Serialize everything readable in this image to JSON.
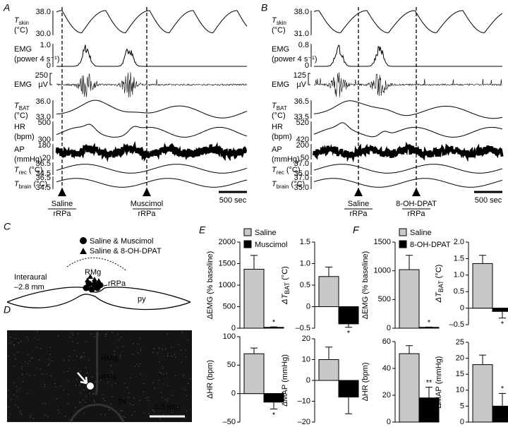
{
  "panel_a": {
    "label": "A",
    "rows": [
      {
        "name": "T",
        "sub": "skin",
        "unit": "(°C)",
        "scale": [
          "38.0",
          "30.0"
        ]
      },
      {
        "name": "EMG",
        "unit": "(power 4 s⁻¹)",
        "scale": [
          "1.0",
          "0"
        ]
      },
      {
        "name": "EMG",
        "scale": [
          "250",
          "µV"
        ]
      },
      {
        "name": "T",
        "sub": "BAT",
        "unit": "(°C)",
        "scale": [
          "36.0",
          "33.0"
        ]
      },
      {
        "name": "HR",
        "unit": "(bpm)",
        "scale": [
          "500",
          "300"
        ]
      },
      {
        "name": "AP",
        "unit": "(mmHg)",
        "scale": [
          "180",
          "20"
        ]
      },
      {
        "name": "T",
        "sub": "rec",
        "unit": "(°C)",
        "scale": [
          "36.5",
          "34.5"
        ]
      },
      {
        "name": "T",
        "sub": "brain",
        "unit": "(°C)",
        "scale": [
          "36.5",
          "34.5"
        ]
      }
    ],
    "events": [
      {
        "drug": "Saline",
        "site": "rRPa"
      },
      {
        "drug": "Muscimol",
        "site": "rRPa"
      }
    ],
    "scale_bar": "500 sec"
  },
  "panel_b": {
    "label": "B",
    "rows": [
      {
        "name": "T",
        "sub": "skin",
        "unit": "(°C)",
        "scale": [
          "38.0",
          "31.0"
        ]
      },
      {
        "name": "EMG",
        "unit": "(power 4 s⁻¹)",
        "scale": [
          "0.8",
          "0"
        ]
      },
      {
        "name": "EMG",
        "scale": [
          "125",
          "µV"
        ]
      },
      {
        "name": "T",
        "sub": "BAT",
        "unit": "(°C)",
        "scale": [
          "36.5",
          "33.5"
        ]
      },
      {
        "name": "HR",
        "unit": "(bpm)",
        "scale": [
          "520",
          "420"
        ]
      },
      {
        "name": "AP",
        "unit": "(mmHg)",
        "scale": [
          "200",
          "50"
        ]
      },
      {
        "name": "T",
        "sub": "rec",
        "unit": "(°C)",
        "scale": [
          "37.0",
          "35.0"
        ]
      },
      {
        "name": "T",
        "sub": "brain",
        "unit": "(°C)",
        "scale": [
          "37.0",
          "35.0"
        ]
      }
    ],
    "events": [
      {
        "drug": "Saline",
        "site": "rRPa"
      },
      {
        "drug": "8-OH-DPAT",
        "site": "rRPa"
      }
    ],
    "scale_bar": "500 sec"
  },
  "panel_c": {
    "label": "C",
    "legend": [
      "Saline & Muscimol",
      "Saline & 8-OH-DPAT"
    ],
    "interaural": [
      "Interaural",
      "–2.8 mm"
    ],
    "regions": [
      "RMg",
      "rRPa",
      "py"
    ]
  },
  "panel_d": {
    "label": "D",
    "regions": [
      "RMg",
      "rRPa",
      "py"
    ],
    "scale_bar": "0.5 mm"
  },
  "panel_e": {
    "label": "E",
    "series": [
      {
        "name": "Saline",
        "color": "#c8c8c8"
      },
      {
        "name": "Muscimol",
        "color": "#000000"
      }
    ],
    "charts": [
      {
        "ylabel": {
          "prefix": "ΔEMG",
          "unit": "(% baseline)"
        },
        "ylim": [
          0,
          2000
        ],
        "yticks": [
          0,
          500,
          1000,
          1500,
          2000
        ],
        "values": [
          1370,
          20
        ],
        "errors": [
          320,
          10
        ],
        "annotation": "*"
      },
      {
        "ylabel": {
          "prefix": "ΔT",
          "sub": "BAT",
          "unit": "(°C)"
        },
        "ylim": [
          -0.5,
          1.5
        ],
        "yticks": [
          {
            "value": -0.5,
            "label": "–0.5"
          },
          0,
          0.5,
          {
            "value": 1,
            "label": "1.0"
          },
          1.5
        ],
        "values": [
          0.7,
          -0.4
        ],
        "errors": [
          0.22,
          0.08
        ],
        "annotation": "*"
      },
      {
        "ylabel": {
          "prefix": "ΔHR",
          "unit": "(bpm)"
        },
        "ylim": [
          -50,
          100
        ],
        "yticks": [
          {
            "value": -50,
            "label": "–50"
          },
          0,
          50,
          100
        ],
        "values": [
          70,
          -15
        ],
        "errors": [
          10,
          12
        ],
        "annotation": "*"
      },
      {
        "ylabel": {
          "prefix": "ΔMAP",
          "unit": "(mmHg)"
        },
        "ylim": [
          -20,
          20
        ],
        "yticks": [
          {
            "value": -20,
            "label": "–20"
          },
          {
            "value": -10,
            "label": "–10"
          },
          0,
          10,
          20
        ],
        "values": [
          10,
          -8
        ],
        "errors": [
          6,
          8
        ]
      }
    ]
  },
  "panel_f": {
    "label": "F",
    "series": [
      {
        "name": "Saline",
        "color": "#c8c8c8"
      },
      {
        "name": "8-OH-DPAT",
        "color": "#000000"
      }
    ],
    "charts": [
      {
        "ylabel": {
          "prefix": "ΔEMG",
          "unit": "(% baseline)"
        },
        "ylim": [
          0,
          1500
        ],
        "yticks": [
          0,
          500,
          1000,
          1500
        ],
        "values": [
          1020,
          15
        ],
        "errors": [
          250,
          5
        ],
        "annotation": "*"
      },
      {
        "ylabel": {
          "prefix": "ΔT",
          "sub": "BAT",
          "unit": "(°C)"
        },
        "ylim": [
          -0.5,
          2
        ],
        "yticks": [
          {
            "value": -0.5,
            "label": "–0.5"
          },
          0,
          0.5,
          {
            "value": 1,
            "label": "1.0"
          },
          1.5,
          {
            "value": 2,
            "label": "2.0"
          }
        ],
        "values": [
          1.35,
          -0.1
        ],
        "errors": [
          0.25,
          0.2
        ],
        "annotation": "*"
      },
      {
        "ylabel": {
          "prefix": "ΔHR",
          "unit": "(bpm)"
        },
        "ylim": [
          0,
          60
        ],
        "yticks": [
          0,
          20,
          40,
          60
        ],
        "values": [
          51,
          18
        ],
        "errors": [
          6,
          8
        ],
        "annotation": "**"
      },
      {
        "ylabel": {
          "prefix": "ΔMAP",
          "unit": "(mmHg)"
        },
        "ylim": [
          0,
          25
        ],
        "yticks": [
          0,
          5,
          10,
          15,
          20,
          25
        ],
        "values": [
          18,
          5
        ],
        "errors": [
          3,
          4
        ],
        "annotation": "*"
      }
    ]
  }
}
